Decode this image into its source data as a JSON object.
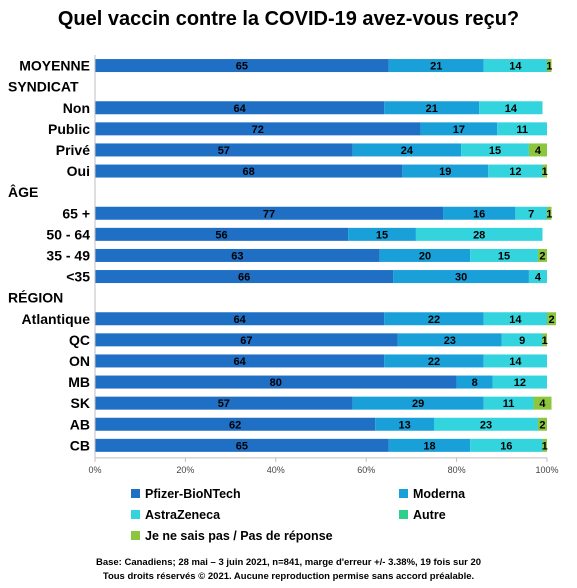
{
  "chart_data": {
    "type": "bar",
    "orientation": "horizontal",
    "stacked": true,
    "title": "Quel vaccin contre la COVID-19 avez-vous reçu?",
    "xlim": [
      0,
      100
    ],
    "x_ticks": [
      "0%",
      "20%",
      "40%",
      "60%",
      "80%",
      "100%"
    ],
    "grid": false,
    "legend_position": "bottom",
    "rows": [
      {
        "label": "MOYENNE",
        "values": [
          65,
          21,
          14,
          0,
          1
        ]
      },
      {
        "label": "SYNDICAT",
        "header": true
      },
      {
        "label": "Non",
        "values": [
          64,
          21,
          14,
          0,
          0
        ]
      },
      {
        "label": "Public",
        "values": [
          72,
          17,
          11,
          0,
          0
        ]
      },
      {
        "label": "Privé",
        "values": [
          57,
          24,
          15,
          0,
          4
        ]
      },
      {
        "label": "Oui",
        "values": [
          68,
          19,
          12,
          0,
          1
        ]
      },
      {
        "label": "ÂGE",
        "header": true
      },
      {
        "label": "65 +",
        "values": [
          77,
          16,
          7,
          0,
          1
        ]
      },
      {
        "label": "50 - 64",
        "values": [
          56,
          15,
          28,
          0,
          0
        ]
      },
      {
        "label": "35 - 49",
        "values": [
          63,
          20,
          15,
          0,
          2
        ]
      },
      {
        "label": "<35",
        "values": [
          66,
          30,
          4,
          0,
          0
        ]
      },
      {
        "label": "RÉGION",
        "header": true
      },
      {
        "label": "Atlantique",
        "values": [
          64,
          22,
          14,
          0,
          2
        ]
      },
      {
        "label": "QC",
        "values": [
          67,
          23,
          9,
          0,
          1
        ]
      },
      {
        "label": "ON",
        "values": [
          64,
          22,
          14,
          0,
          0
        ]
      },
      {
        "label": "MB",
        "values": [
          80,
          8,
          12,
          0,
          0
        ]
      },
      {
        "label": "SK",
        "values": [
          57,
          29,
          11,
          0,
          4
        ]
      },
      {
        "label": "AB",
        "values": [
          62,
          13,
          23,
          0,
          2
        ]
      },
      {
        "label": "CB",
        "values": [
          65,
          18,
          16,
          0,
          1
        ]
      }
    ],
    "series": [
      {
        "name": "Pfizer-BioNTech",
        "color": "#1f6fc5"
      },
      {
        "name": "Moderna",
        "color": "#1aa0d8"
      },
      {
        "name": "AstraZeneca",
        "color": "#33d4de"
      },
      {
        "name": "Autre",
        "color": "#2bd18a"
      },
      {
        "name": "Je ne sais pas / Pas de réponse",
        "color": "#8cc63f"
      }
    ]
  },
  "footer": {
    "line1": "Base: Canadiens; 28 mai – 3 juin 2021, n=841, marge d'erreur +/- 3.38%, 19 fois sur 20",
    "line2": "Tous droits réservés © 2021. Aucune reproduction permise sans accord préalable."
  }
}
